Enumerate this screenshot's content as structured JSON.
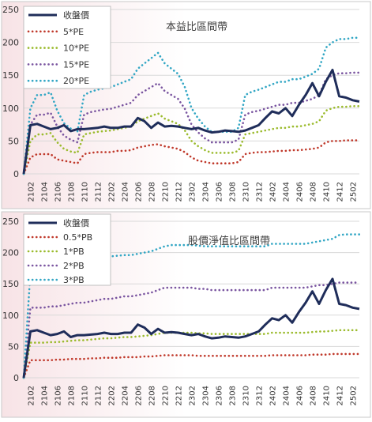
{
  "charts": [
    {
      "id": "pe",
      "type": "line",
      "title": "本益比區間帶",
      "ylim": [
        0,
        250
      ],
      "yticks": [
        0,
        50,
        100,
        150,
        200,
        250
      ],
      "grid": true,
      "legend_position": "top-left",
      "x": [
        "2101",
        "2102",
        "2103",
        "2104",
        "2105",
        "2106",
        "2107",
        "2108",
        "2109",
        "2110",
        "2111",
        "2112",
        "2201",
        "2202",
        "2203",
        "2204",
        "2205",
        "2206",
        "2207",
        "2208",
        "2209",
        "2210",
        "2211",
        "2212",
        "2301",
        "2302",
        "2303",
        "2304",
        "2305",
        "2306",
        "2307",
        "2308",
        "2309",
        "2310",
        "2311",
        "2312",
        "2401",
        "2402",
        "2403",
        "2404",
        "2405",
        "2406",
        "2407",
        "2408",
        "2409",
        "2410",
        "2411",
        "2412",
        "2501",
        "2502",
        "2503"
      ],
      "xticks": [
        "2102",
        "2104",
        "2106",
        "2108",
        "2110",
        "2112",
        "2202",
        "2204",
        "2206",
        "2208",
        "2210",
        "2212",
        "2302",
        "2304",
        "2306",
        "2308",
        "2310",
        "2312",
        "2402",
        "2404",
        "2406",
        "2408",
        "2410",
        "2412",
        "2502"
      ],
      "series": [
        {
          "name": "收盤價",
          "color": "#1f2d5a",
          "style": "solid",
          "values": [
            0,
            74,
            76,
            72,
            68,
            70,
            74,
            65,
            68,
            68,
            69,
            70,
            72,
            70,
            70,
            72,
            72,
            85,
            80,
            70,
            78,
            72,
            73,
            72,
            70,
            68,
            70,
            66,
            63,
            64,
            66,
            65,
            64,
            66,
            70,
            74,
            85,
            95,
            92,
            100,
            88,
            105,
            120,
            138,
            118,
            140,
            158,
            118,
            116,
            112,
            110
          ]
        },
        {
          "name": "5*PE",
          "color": "#c0392b",
          "style": "dot",
          "values": [
            0,
            25,
            30,
            30,
            30,
            22,
            20,
            18,
            16,
            30,
            32,
            33,
            33,
            33,
            35,
            35,
            36,
            40,
            42,
            44,
            45,
            42,
            40,
            38,
            33,
            25,
            20,
            18,
            16,
            16,
            16,
            16,
            18,
            30,
            32,
            33,
            33,
            34,
            35,
            35,
            36,
            36,
            37,
            38,
            40,
            48,
            50,
            50,
            51,
            51,
            51
          ]
        },
        {
          "name": "10*PE",
          "color": "#9bbb2d",
          "style": "dot",
          "values": [
            0,
            50,
            60,
            60,
            62,
            48,
            38,
            34,
            32,
            60,
            62,
            64,
            65,
            66,
            68,
            70,
            72,
            80,
            84,
            88,
            92,
            84,
            80,
            76,
            66,
            50,
            42,
            36,
            32,
            32,
            32,
            32,
            35,
            60,
            62,
            64,
            66,
            68,
            70,
            70,
            72,
            72,
            74,
            76,
            80,
            96,
            100,
            102,
            102,
            103,
            103
          ]
        },
        {
          "name": "15*PE",
          "color": "#7a55a0",
          "style": "dot",
          "values": [
            0,
            75,
            90,
            90,
            93,
            72,
            58,
            52,
            48,
            90,
            94,
            96,
            98,
            99,
            102,
            105,
            108,
            120,
            126,
            132,
            138,
            126,
            120,
            114,
            99,
            75,
            63,
            54,
            48,
            48,
            48,
            48,
            52,
            90,
            94,
            96,
            99,
            102,
            105,
            105,
            108,
            108,
            111,
            114,
            120,
            144,
            150,
            153,
            153,
            154,
            154
          ]
        },
        {
          "name": "20*PE",
          "color": "#31a6c4",
          "style": "dot",
          "values": [
            0,
            100,
            120,
            120,
            124,
            96,
            77,
            69,
            64,
            120,
            125,
            128,
            130,
            132,
            136,
            140,
            144,
            160,
            168,
            176,
            184,
            168,
            160,
            152,
            132,
            100,
            84,
            72,
            64,
            64,
            64,
            64,
            70,
            120,
            125,
            128,
            132,
            136,
            140,
            140,
            144,
            144,
            148,
            152,
            160,
            192,
            200,
            205,
            205,
            207,
            207
          ]
        }
      ]
    },
    {
      "id": "pb",
      "type": "line",
      "title": "股價淨值比區間帶",
      "ylim": [
        0,
        250
      ],
      "yticks": [
        0,
        50,
        100,
        150,
        200,
        250
      ],
      "grid": true,
      "legend_position": "top-left",
      "x": [
        "2101",
        "2102",
        "2103",
        "2104",
        "2105",
        "2106",
        "2107",
        "2108",
        "2109",
        "2110",
        "2111",
        "2112",
        "2201",
        "2202",
        "2203",
        "2204",
        "2205",
        "2206",
        "2207",
        "2208",
        "2209",
        "2210",
        "2211",
        "2212",
        "2301",
        "2302",
        "2303",
        "2304",
        "2305",
        "2306",
        "2307",
        "2308",
        "2309",
        "2310",
        "2311",
        "2312",
        "2401",
        "2402",
        "2403",
        "2404",
        "2405",
        "2406",
        "2407",
        "2408",
        "2409",
        "2410",
        "2411",
        "2412",
        "2501",
        "2502",
        "2503"
      ],
      "xticks": [
        "2102",
        "2104",
        "2106",
        "2108",
        "2110",
        "2112",
        "2202",
        "2204",
        "2206",
        "2208",
        "2210",
        "2212",
        "2302",
        "2304",
        "2306",
        "2308",
        "2310",
        "2312",
        "2402",
        "2404",
        "2406",
        "2408",
        "2410",
        "2412",
        "2502"
      ],
      "series": [
        {
          "name": "收盤價",
          "color": "#1f2d5a",
          "style": "solid",
          "values": [
            0,
            74,
            76,
            72,
            68,
            70,
            74,
            65,
            68,
            68,
            69,
            70,
            72,
            70,
            70,
            72,
            72,
            85,
            80,
            70,
            78,
            72,
            73,
            72,
            70,
            68,
            70,
            66,
            63,
            64,
            66,
            65,
            64,
            66,
            70,
            74,
            85,
            95,
            92,
            100,
            88,
            105,
            120,
            138,
            118,
            140,
            158,
            118,
            116,
            112,
            110
          ]
        },
        {
          "name": "0.5*PB",
          "color": "#c0392b",
          "style": "dot",
          "values": [
            0,
            28,
            28,
            28,
            28,
            29,
            29,
            30,
            30,
            30,
            31,
            31,
            32,
            32,
            32,
            33,
            33,
            33,
            34,
            34,
            35,
            36,
            36,
            36,
            36,
            36,
            35,
            35,
            35,
            35,
            35,
            35,
            35,
            35,
            35,
            35,
            35,
            36,
            36,
            36,
            36,
            36,
            36,
            37,
            37,
            37,
            38,
            38,
            38,
            38,
            38
          ]
        },
        {
          "name": "1*PB",
          "color": "#9bbb2d",
          "style": "dot",
          "values": [
            0,
            56,
            56,
            56,
            57,
            57,
            58,
            59,
            60,
            60,
            61,
            62,
            63,
            63,
            64,
            65,
            65,
            66,
            67,
            68,
            70,
            72,
            72,
            72,
            72,
            72,
            71,
            71,
            70,
            70,
            70,
            70,
            70,
            70,
            70,
            70,
            70,
            72,
            72,
            72,
            72,
            72,
            72,
            73,
            74,
            74,
            75,
            76,
            76,
            76,
            76
          ]
        },
        {
          "name": "2*PB",
          "color": "#7a55a0",
          "style": "dot",
          "values": [
            0,
            112,
            112,
            112,
            114,
            114,
            116,
            118,
            120,
            120,
            122,
            124,
            126,
            126,
            128,
            130,
            130,
            132,
            134,
            136,
            140,
            144,
            144,
            144,
            144,
            144,
            142,
            142,
            140,
            140,
            140,
            140,
            140,
            140,
            140,
            140,
            140,
            144,
            144,
            144,
            144,
            144,
            144,
            146,
            148,
            148,
            150,
            152,
            152,
            152,
            152
          ]
        },
        {
          "name": "3*PB",
          "color": "#31a6c4",
          "style": "dot",
          "values": [
            0,
            168,
            170,
            172,
            175,
            178,
            180,
            182,
            184,
            186,
            188,
            190,
            192,
            194,
            195,
            196,
            196,
            198,
            200,
            202,
            206,
            210,
            212,
            212,
            212,
            212,
            211,
            210,
            210,
            210,
            210,
            210,
            210,
            210,
            210,
            210,
            210,
            214,
            214,
            214,
            214,
            214,
            214,
            216,
            218,
            220,
            222,
            228,
            229,
            229,
            229
          ]
        }
      ]
    }
  ]
}
